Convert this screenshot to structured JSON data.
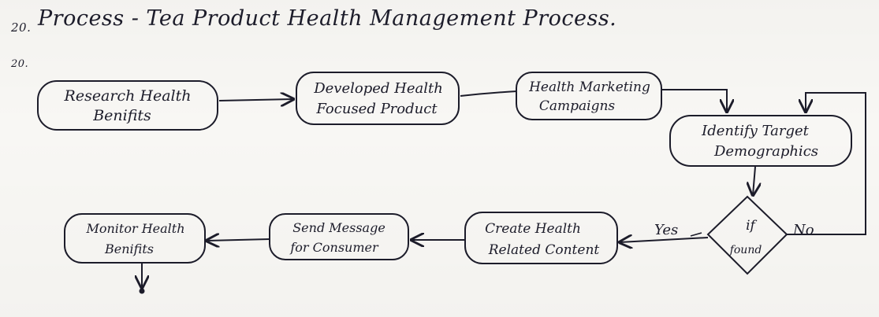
{
  "header": {
    "mark": "20.",
    "title": "Process - Tea Product Health Management Process.",
    "sub_mark": "20."
  },
  "nodes": {
    "research": [
      "Research Health",
      "Benifits"
    ],
    "developed": [
      "Developed Health",
      "Focused Product"
    ],
    "marketing": [
      "Health Marketing",
      "Campaigns"
    ],
    "identify": [
      "Identify Target",
      "Demographics"
    ],
    "decision": [
      "if",
      "found"
    ],
    "create": [
      "Create Health",
      "Related Content"
    ],
    "send": [
      "Send Message",
      "for Consumer"
    ],
    "monitor": [
      "Monitor Health",
      "Benifits"
    ]
  },
  "edges": {
    "yes_label": "Yes",
    "no_label": "No"
  },
  "colors": {
    "ink": "#1c1c2a",
    "paper": "#f8f7f4"
  }
}
